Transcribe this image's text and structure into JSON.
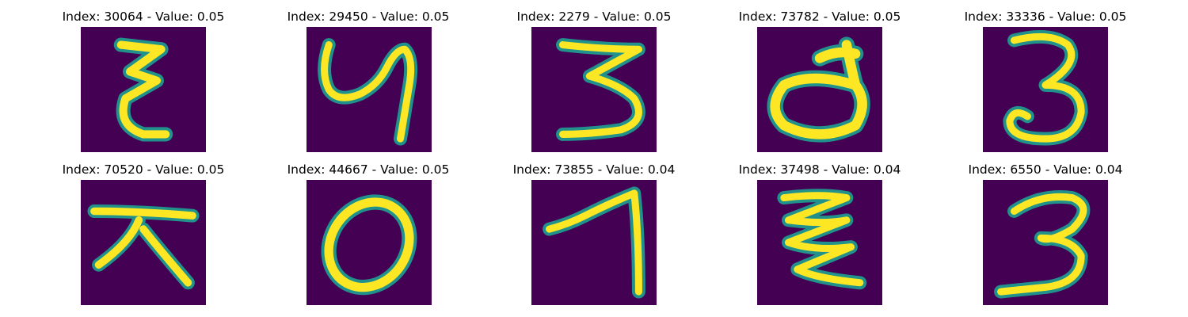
{
  "figure": {
    "panels": [
      {
        "title": "Index: 30064 - Value: 0.05",
        "index": 30064,
        "value": 0.05,
        "glyph": "ξ-like"
      },
      {
        "title": "Index: 29450 - Value: 0.05",
        "index": 29450,
        "value": 0.05,
        "glyph": "y-like"
      },
      {
        "title": "Index: 2279 - Value: 0.05",
        "index": 2279,
        "value": 0.05,
        "glyph": "3-like"
      },
      {
        "title": "Index: 73782 - Value: 0.05",
        "index": 73782,
        "value": 0.05,
        "glyph": "d-like"
      },
      {
        "title": "Index: 33336 - Value: 0.05",
        "index": 33336,
        "value": 0.05,
        "glyph": "3"
      },
      {
        "title": "Index: 70520 - Value: 0.05",
        "index": 70520,
        "value": 0.05,
        "glyph": "大-like"
      },
      {
        "title": "Index: 44667 - Value: 0.05",
        "index": 44667,
        "value": 0.05,
        "glyph": "0"
      },
      {
        "title": "Index: 73855 - Value: 0.04",
        "index": 73855,
        "value": 0.04,
        "glyph": "7-like"
      },
      {
        "title": "Index: 37498 - Value: 0.04",
        "index": 37498,
        "value": 0.04,
        "glyph": "ξ-like"
      },
      {
        "title": "Index: 6550 - Value: 0.04",
        "index": 6550,
        "value": 0.04,
        "glyph": "3"
      }
    ],
    "colors": {
      "background": "#440154",
      "edge": "#21918c",
      "stroke": "#fde725"
    }
  }
}
